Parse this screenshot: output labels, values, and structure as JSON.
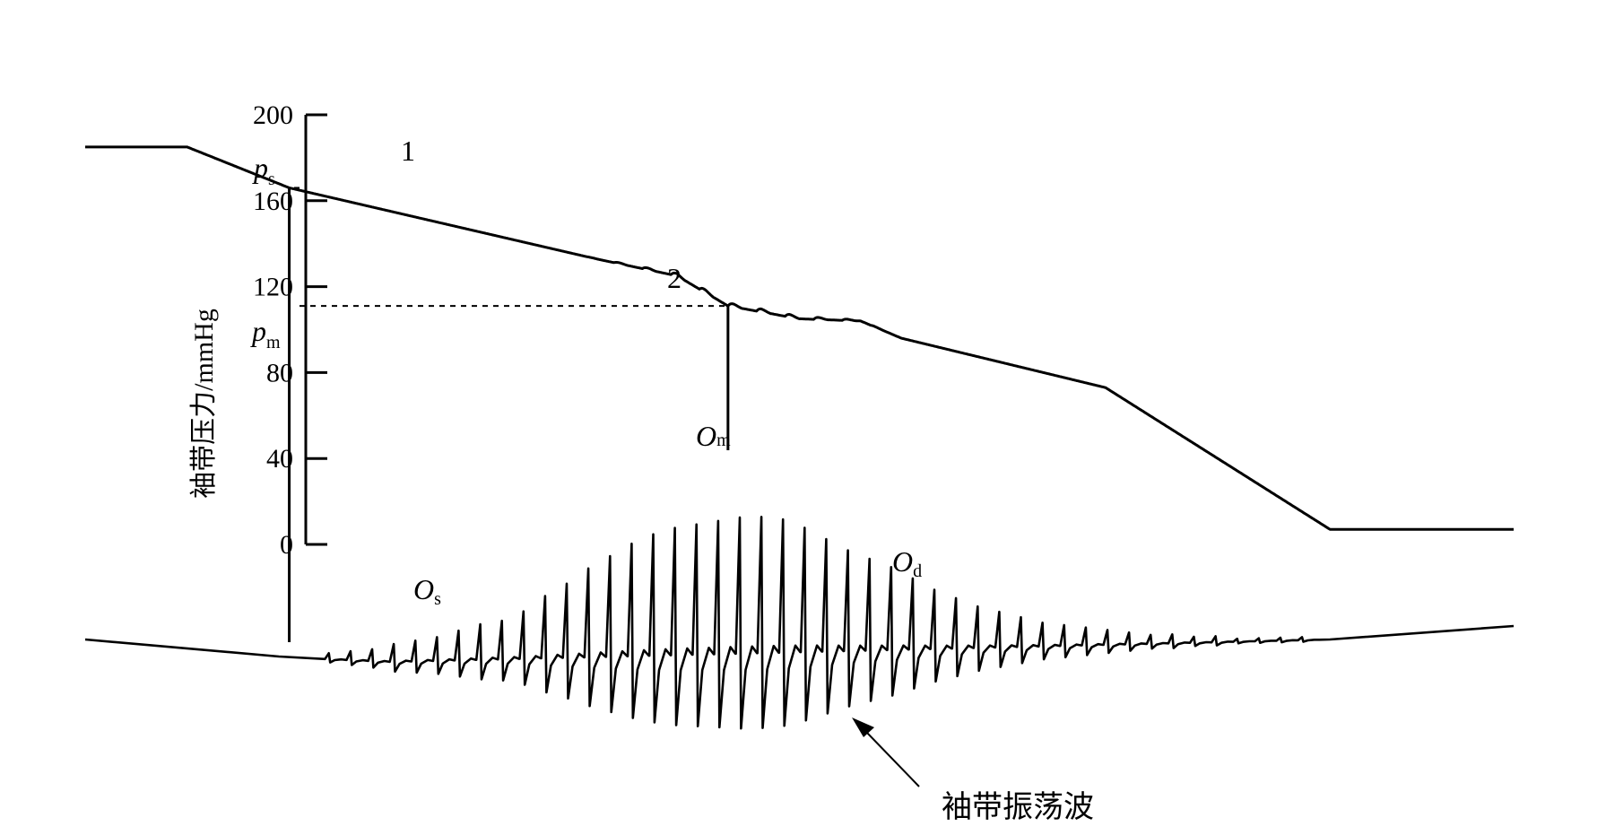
{
  "chart_data": {
    "type": "line",
    "ylabel": "袖带压力/mmHg",
    "ylim": [
      0,
      200
    ],
    "yticks": [
      {
        "value": 200,
        "label": "200"
      },
      {
        "value": 160,
        "label": "160"
      },
      {
        "value": 120,
        "label": "120"
      },
      {
        "value": 80,
        "label": "80"
      },
      {
        "value": 40,
        "label": "40"
      },
      {
        "value": 0,
        "label": "0"
      }
    ],
    "pressure_markers": [
      {
        "symbol": "p",
        "sub": "s",
        "value": 166,
        "point_label": "1"
      },
      {
        "symbol": "p",
        "sub": "m",
        "value": 111,
        "point_label": "2"
      }
    ],
    "oscillation_labels": [
      {
        "symbol": "O",
        "sub": "s"
      },
      {
        "symbol": "O",
        "sub": "m"
      },
      {
        "symbol": "O",
        "sub": "d"
      }
    ],
    "callout": "袖带振荡波",
    "series": [
      {
        "role": "cuff-pressure",
        "points": [
          [
            0,
            185
          ],
          [
            1,
            185
          ],
          [
            2,
            166
          ],
          [
            5,
            133
          ],
          [
            5.8,
            125
          ],
          [
            6.3,
            111
          ],
          [
            7,
            105
          ],
          [
            7.6,
            104
          ],
          [
            8,
            96
          ],
          [
            10,
            73
          ],
          [
            12.2,
            7
          ],
          [
            14,
            7
          ]
        ]
      },
      {
        "role": "cuff-oscillation",
        "baseline_rise": [
          [
            0,
            0
          ],
          [
            2,
            -4
          ],
          [
            3,
            -5
          ],
          [
            12.2,
            0
          ],
          [
            14,
            3
          ]
        ],
        "beat_amplitudes": [
          2,
          3,
          4,
          6,
          7,
          8,
          10,
          12,
          13,
          16,
          21,
          25,
          30,
          34,
          38,
          41,
          43,
          44,
          45,
          46,
          46,
          45,
          42,
          38,
          34,
          31,
          28,
          24,
          20,
          17,
          14,
          12,
          10,
          8,
          7,
          6,
          5,
          4,
          3,
          3,
          2,
          2,
          1,
          1,
          1,
          1
        ]
      }
    ]
  }
}
